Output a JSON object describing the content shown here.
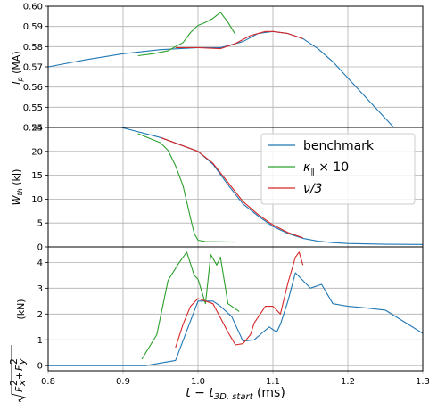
{
  "colors": {
    "benchmark": "#1f77b4",
    "kappa": "#2ca02c",
    "nu": "#d62728"
  },
  "chart_data": [
    {
      "type": "line",
      "ylabel": "I_p (MA)",
      "xlim": [
        0.8,
        1.3
      ],
      "ylim": [
        0.54,
        0.6
      ],
      "yticks": [
        "0.54",
        "0.55",
        "0.56",
        "0.57",
        "0.58",
        "0.59",
        "0.60"
      ],
      "grid": true,
      "series": [
        {
          "name": "benchmark",
          "color": "#1f77b4",
          "x": [
            0.8,
            0.85,
            0.9,
            0.95,
            1.0,
            1.03,
            1.06,
            1.08,
            1.1,
            1.12,
            1.14,
            1.16,
            1.18,
            1.2,
            1.22,
            1.24,
            1.26,
            1.28
          ],
          "y": [
            0.57,
            0.5735,
            0.5765,
            0.5785,
            0.5795,
            0.5795,
            0.5825,
            0.5865,
            0.5875,
            0.5865,
            0.584,
            0.579,
            0.5725,
            0.5645,
            0.5565,
            0.5485,
            0.5405,
            0.532
          ]
        },
        {
          "name": "κ_∥ × 10",
          "color": "#2ca02c",
          "x": [
            0.92,
            0.94,
            0.96,
            0.98,
            0.99,
            1.0,
            1.01,
            1.02,
            1.03,
            1.04,
            1.05
          ],
          "y": [
            0.5755,
            0.5765,
            0.578,
            0.582,
            0.587,
            0.5905,
            0.592,
            0.594,
            0.597,
            0.592,
            0.586
          ]
        },
        {
          "name": "ν/3",
          "color": "#d62728",
          "x": [
            0.97,
            1.0,
            1.03,
            1.05,
            1.07,
            1.09,
            1.1,
            1.12,
            1.14
          ],
          "y": [
            0.5795,
            0.5795,
            0.579,
            0.5815,
            0.5855,
            0.5875,
            0.5875,
            0.5865,
            0.584
          ]
        }
      ]
    },
    {
      "type": "line",
      "ylabel": "W_th (kJ)",
      "xlim": [
        0.8,
        1.3
      ],
      "ylim": [
        0,
        25
      ],
      "yticks": [
        "0",
        "5",
        "10",
        "15",
        "20",
        "25"
      ],
      "grid": true,
      "legend": {
        "placement": "top-right",
        "entries": [
          "benchmark",
          "κ_∥ × 10",
          "ν/3"
        ]
      },
      "series": [
        {
          "name": "benchmark",
          "color": "#1f77b4",
          "x": [
            0.85,
            0.9,
            0.95,
            1.0,
            1.02,
            1.04,
            1.06,
            1.08,
            1.1,
            1.12,
            1.14,
            1.16,
            1.18,
            1.2,
            1.25,
            1.3
          ],
          "y": [
            26.8,
            24.9,
            22.9,
            20.0,
            17.3,
            13.0,
            9.0,
            6.5,
            4.3,
            2.8,
            1.8,
            1.2,
            0.9,
            0.7,
            0.55,
            0.5
          ]
        },
        {
          "name": "κ_∥ × 10",
          "color": "#2ca02c",
          "x": [
            0.92,
            0.95,
            0.96,
            0.97,
            0.98,
            0.99,
            0.995,
            1.0,
            1.01,
            1.05
          ],
          "y": [
            23.7,
            21.8,
            20.2,
            17.0,
            12.8,
            6.0,
            2.8,
            1.4,
            1.1,
            1.0
          ]
        },
        {
          "name": "ν/3",
          "color": "#d62728",
          "x": [
            0.95,
            1.0,
            1.02,
            1.04,
            1.06,
            1.08,
            1.1,
            1.12,
            1.14
          ],
          "y": [
            22.9,
            20.0,
            17.5,
            13.5,
            9.5,
            6.8,
            4.6,
            3.0,
            1.9
          ]
        }
      ]
    },
    {
      "type": "line",
      "ylabel": "√(F_x² + F_y²) (kN)",
      "xlabel": "t − t_3D, start (ms)",
      "xlim": [
        0.8,
        1.3
      ],
      "ylim": [
        -0.2,
        4.6
      ],
      "yticks": [
        "0",
        "1",
        "2",
        "3",
        "4"
      ],
      "xticks": [
        "0.8",
        "0.9",
        "1.0",
        "1.1",
        "1.2",
        "1.3"
      ],
      "grid": true,
      "series": [
        {
          "name": "benchmark",
          "color": "#1f77b4",
          "x": [
            0.8,
            0.93,
            0.97,
            1.0,
            1.02,
            1.03,
            1.045,
            1.06,
            1.075,
            1.085,
            1.095,
            1.105,
            1.11,
            1.12,
            1.13,
            1.14,
            1.15,
            1.165,
            1.18,
            1.2,
            1.22,
            1.25,
            1.3
          ],
          "y": [
            0.0,
            0.0,
            0.2,
            2.5,
            2.5,
            2.3,
            1.9,
            0.95,
            1.0,
            1.25,
            1.5,
            1.3,
            1.6,
            2.5,
            3.6,
            3.3,
            3.0,
            3.15,
            2.4,
            2.3,
            2.25,
            2.15,
            1.25
          ]
        },
        {
          "name": "κ_∥ × 10",
          "color": "#2ca02c",
          "x": [
            0.925,
            0.945,
            0.96,
            0.975,
            0.985,
            0.995,
            1.0,
            1.01,
            1.017,
            1.025,
            1.03,
            1.04,
            1.055
          ],
          "y": [
            0.25,
            1.2,
            3.3,
            4.0,
            4.4,
            3.5,
            3.35,
            2.4,
            4.3,
            3.9,
            4.2,
            2.4,
            2.1
          ]
        },
        {
          "name": "ν/3",
          "color": "#d62728",
          "x": [
            0.97,
            0.98,
            0.99,
            1.0,
            1.02,
            1.04,
            1.05,
            1.06,
            1.07,
            1.075,
            1.09,
            1.1,
            1.11,
            1.12,
            1.13,
            1.135,
            1.14
          ],
          "y": [
            0.7,
            1.6,
            2.3,
            2.6,
            2.4,
            1.3,
            0.8,
            0.85,
            1.2,
            1.65,
            2.3,
            2.3,
            2.0,
            3.2,
            4.2,
            4.4,
            3.9
          ]
        }
      ]
    }
  ],
  "text": {
    "panel1_ylabel_main": "I",
    "panel1_ylabel_sub": "p",
    "panel1_ylabel_unit": " (MA)",
    "panel2_ylabel_main": "W",
    "panel2_ylabel_sub": "th",
    "panel2_ylabel_unit": " (kJ)",
    "panel3_ylabel_unit": " (kN)",
    "legend_benchmark": "benchmark",
    "legend_kappa_main": "κ",
    "legend_kappa_sub": "∥",
    "legend_kappa_rest": " × 10",
    "legend_nu": "ν/3",
    "xlabel_main": "t − t",
    "xlabel_sub": "3D, start",
    "xlabel_unit": " (ms)"
  }
}
